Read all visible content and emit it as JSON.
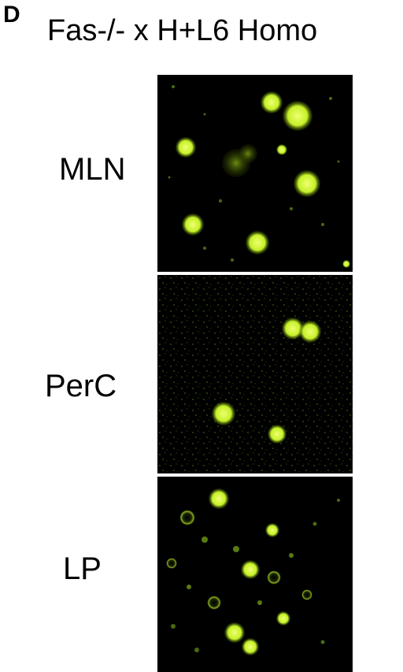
{
  "figure": {
    "panel_letter": "D",
    "title": "Fas-/- x H+L6 Homo"
  },
  "panels": [
    {
      "label": "MLN"
    },
    {
      "label": "PerC"
    },
    {
      "label": "LP"
    }
  ],
  "colors": {
    "stain": "#b8f020",
    "stain_bright": "#e8ff60",
    "background": "#000000"
  }
}
